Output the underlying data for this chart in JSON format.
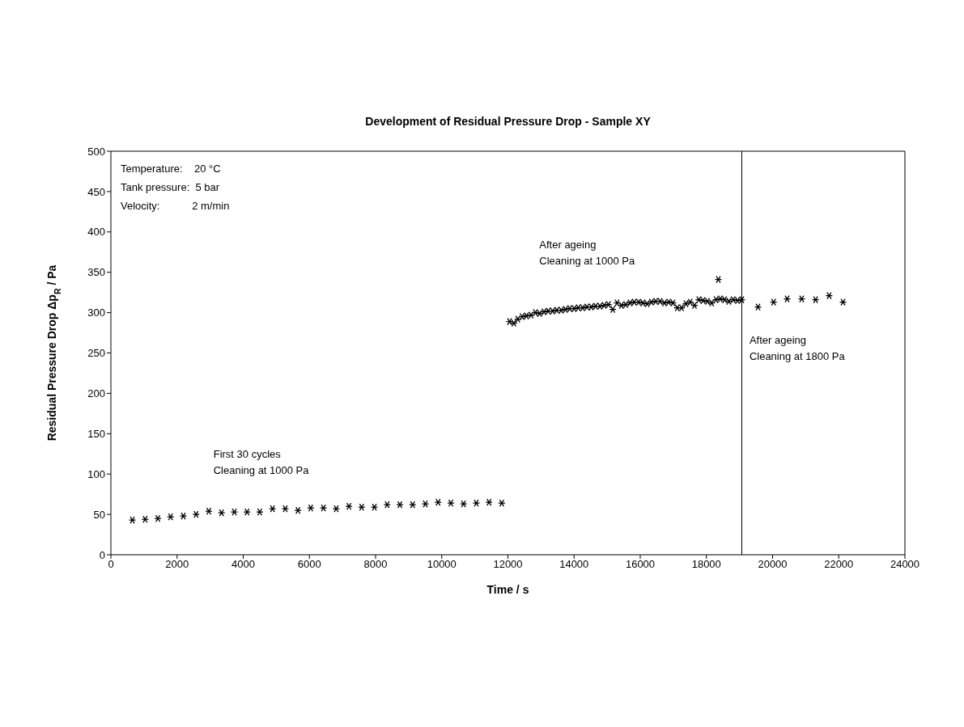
{
  "chart_data": {
    "type": "scatter",
    "title": "Development of Residual Pressure Drop - Sample XY",
    "xlabel": "Time / s",
    "ylabel": "Residual Pressure Drop Δp$_{R}$ / Pa",
    "xlim": [
      0,
      24000
    ],
    "xticks": [
      0,
      2000,
      4000,
      6000,
      8000,
      10000,
      12000,
      14000,
      16000,
      18000,
      20000,
      22000,
      24000
    ],
    "ylim": [
      0,
      500
    ],
    "yticks": [
      0,
      50,
      100,
      150,
      200,
      250,
      300,
      350,
      400,
      450,
      500
    ],
    "grid": false,
    "legend": false,
    "marker": "cross",
    "series": [
      {
        "color": "#000000",
        "x": [
          650,
          1035,
          1420,
          1805,
          2190,
          2575,
          2960,
          3345,
          3730,
          4115,
          4500,
          4885,
          5270,
          5655,
          6040,
          6425,
          6810,
          7195,
          7580,
          7965,
          8350,
          8735,
          9120,
          9505,
          9890,
          10275,
          10660,
          11045,
          11430,
          11815
        ],
        "values": [
          43,
          44,
          45,
          47,
          48,
          50,
          54,
          52,
          53,
          53,
          53,
          57,
          57,
          55,
          58,
          58,
          57,
          60,
          59,
          59,
          62,
          62,
          62,
          63,
          65,
          64,
          63,
          64,
          65,
          64
        ]
      },
      {
        "color": "#000000",
        "x": [
          12050,
          12180,
          12300,
          12430,
          12560,
          12700,
          12830,
          12960,
          13090,
          13220,
          13350,
          13480,
          13610,
          13740,
          13870,
          14000,
          14130,
          14260,
          14390,
          14520,
          14650,
          14780,
          14910,
          15040,
          15170,
          15300,
          15430,
          15560,
          15690,
          15820,
          15950,
          16080,
          16210,
          16340,
          16470,
          16600,
          16730,
          16860,
          16990,
          17120,
          17250,
          17380,
          17510,
          17640,
          17770,
          17900,
          18030,
          18160,
          18290,
          18360,
          18420,
          18550,
          18680,
          18810,
          18940,
          19070
        ],
        "values": [
          289,
          287,
          292,
          295,
          296,
          297,
          300,
          299,
          301,
          302,
          302,
          303,
          303,
          304,
          305,
          305,
          306,
          306,
          307,
          307,
          308,
          308,
          309,
          310,
          304,
          312,
          309,
          310,
          312,
          313,
          313,
          312,
          311,
          313,
          314,
          314,
          312,
          313,
          312,
          306,
          306,
          311,
          313,
          309,
          316,
          315,
          314,
          312,
          316,
          341,
          317,
          316,
          314,
          316,
          315,
          316
        ]
      },
      {
        "color": "#000000",
        "x": [
          19560,
          20030,
          20440,
          20880,
          21300,
          21710,
          22130
        ],
        "values": [
          307,
          313,
          317,
          317,
          316,
          321,
          313
        ]
      }
    ],
    "ref_lines": [
      {
        "axis": "x",
        "value": 19070,
        "color": "#000000"
      }
    ],
    "annotations": [
      "Temperature:    20 °C",
      "Tank pressure:  5 bar",
      "Velocity:           2 m/min",
      "First 30 cycles\nCleaning at 1000 Pa",
      "After ageing\nCleaning at 1000 Pa",
      "After ageing\nCleaning at 1800 Pa"
    ]
  }
}
